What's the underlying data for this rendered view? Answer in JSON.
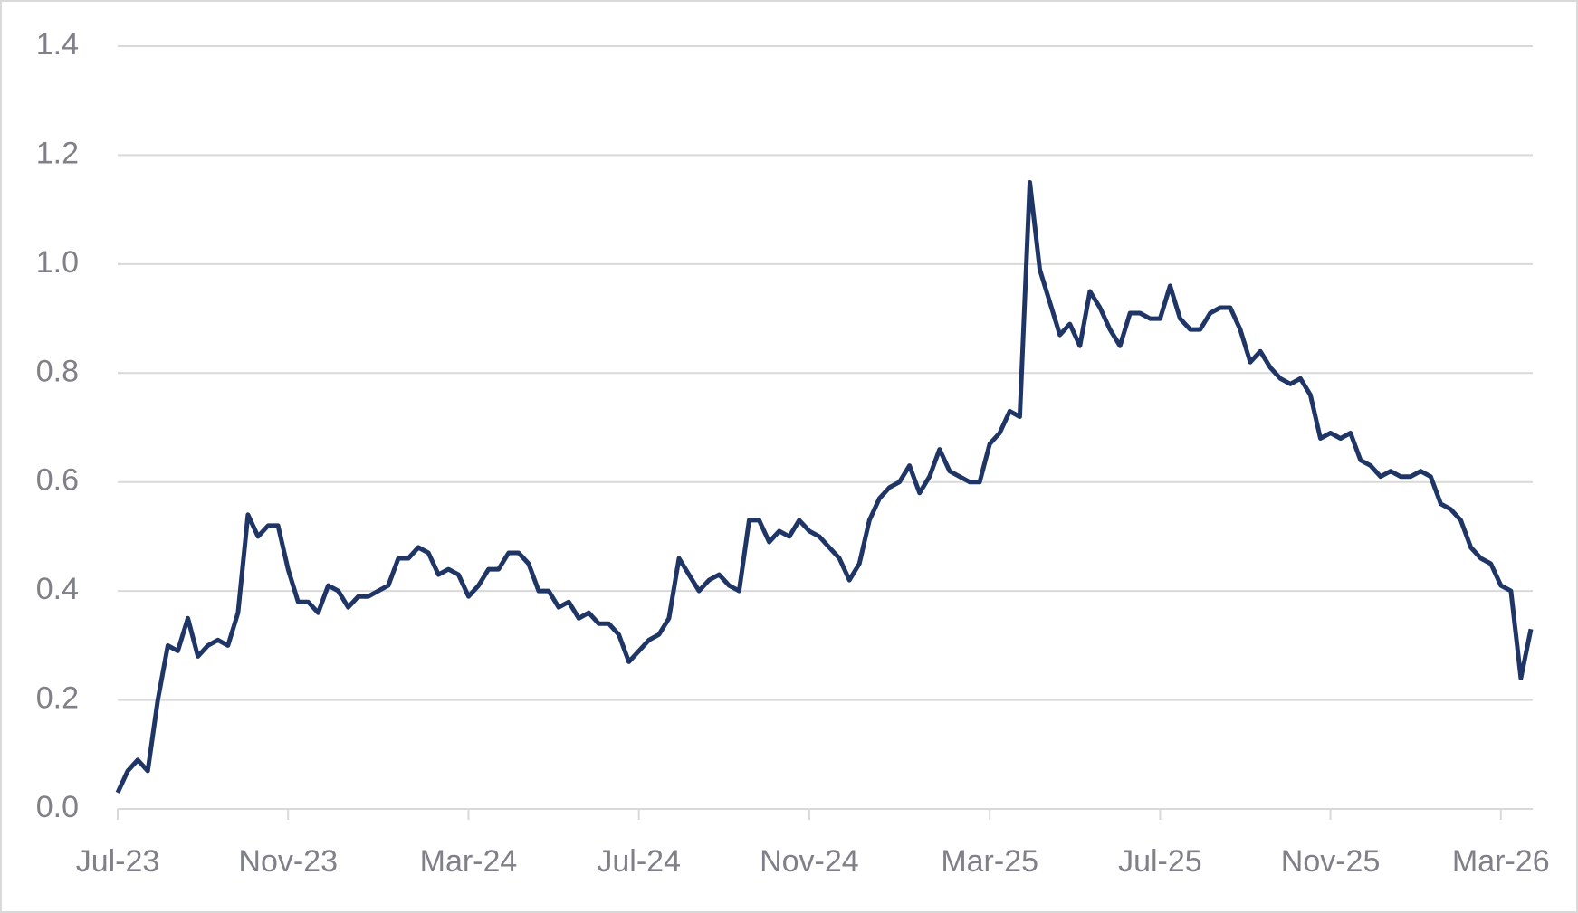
{
  "chart_data": {
    "type": "line",
    "categories": [
      "Jul-23",
      null,
      null,
      null,
      null,
      null,
      null,
      null,
      null,
      null,
      null,
      null,
      null,
      null,
      null,
      null,
      null,
      "Nov-23",
      null,
      null,
      null,
      null,
      null,
      null,
      null,
      null,
      null,
      null,
      null,
      null,
      null,
      null,
      null,
      null,
      null,
      "Mar-24",
      null,
      null,
      null,
      null,
      null,
      null,
      null,
      null,
      null,
      null,
      null,
      null,
      null,
      null,
      null,
      null,
      "Jul-24",
      null,
      null,
      null,
      null,
      null,
      null,
      null,
      null,
      null,
      null,
      null,
      null,
      null,
      null,
      null,
      null,
      "Nov-24",
      null,
      null,
      null,
      null,
      null,
      null,
      null,
      null,
      null,
      null,
      null,
      null,
      null,
      null,
      null,
      null,
      null,
      "Mar-25",
      null,
      null,
      null,
      null,
      null,
      null,
      null,
      null,
      null,
      null,
      null,
      null,
      null,
      null,
      null,
      null,
      "Jul-25",
      null,
      null,
      null,
      null,
      null,
      null,
      null,
      null,
      null,
      null,
      null,
      null,
      null,
      null,
      null,
      null,
      "Nov-25",
      null,
      null,
      null,
      null,
      null,
      null,
      null,
      null,
      null,
      null,
      null,
      null,
      null,
      null,
      null,
      null,
      "Mar-26",
      null,
      null,
      null
    ],
    "series": [
      {
        "color": "#1f3566",
        "values": [
          0.03,
          0.07,
          0.09,
          0.07,
          0.2,
          0.3,
          0.29,
          0.35,
          0.28,
          0.3,
          0.31,
          0.3,
          0.36,
          0.54,
          0.5,
          0.52,
          0.52,
          0.44,
          0.38,
          0.38,
          0.36,
          0.41,
          0.4,
          0.37,
          0.39,
          0.39,
          0.4,
          0.41,
          0.46,
          0.46,
          0.48,
          0.47,
          0.43,
          0.44,
          0.43,
          0.39,
          0.41,
          0.44,
          0.44,
          0.47,
          0.47,
          0.45,
          0.4,
          0.4,
          0.37,
          0.38,
          0.35,
          0.36,
          0.34,
          0.34,
          0.32,
          0.27,
          0.29,
          0.31,
          0.32,
          0.35,
          0.46,
          0.43,
          0.4,
          0.42,
          0.43,
          0.41,
          0.4,
          0.53,
          0.53,
          0.49,
          0.51,
          0.5,
          0.53,
          0.51,
          0.5,
          0.48,
          0.46,
          0.42,
          0.45,
          0.53,
          0.57,
          0.59,
          0.6,
          0.63,
          0.58,
          0.61,
          0.66,
          0.62,
          0.61,
          0.6,
          0.6,
          0.67,
          0.69,
          0.73,
          0.72,
          1.15,
          0.99,
          0.93,
          0.87,
          0.89,
          0.85,
          0.95,
          0.92,
          0.88,
          0.85,
          0.91,
          0.91,
          0.9,
          0.9,
          0.96,
          0.9,
          0.88,
          0.88,
          0.91,
          0.92,
          0.92,
          0.88,
          0.82,
          0.84,
          0.81,
          0.79,
          0.78,
          0.79,
          0.76,
          0.68,
          0.69,
          0.68,
          0.69,
          0.64,
          0.63,
          0.61,
          0.62,
          0.61,
          0.61,
          0.62,
          0.61,
          0.56,
          0.55,
          0.53,
          0.48,
          0.46,
          0.45,
          0.41,
          0.4,
          0.24,
          0.33
        ]
      }
    ],
    "ylim": [
      0,
      1.4
    ],
    "yticks": [
      {
        "value": 0,
        "label": "0.0"
      },
      0.2,
      0.4,
      0.6,
      0.8,
      {
        "value": 1,
        "label": "1.0"
      },
      1.2,
      1.4
    ],
    "grid": true
  }
}
